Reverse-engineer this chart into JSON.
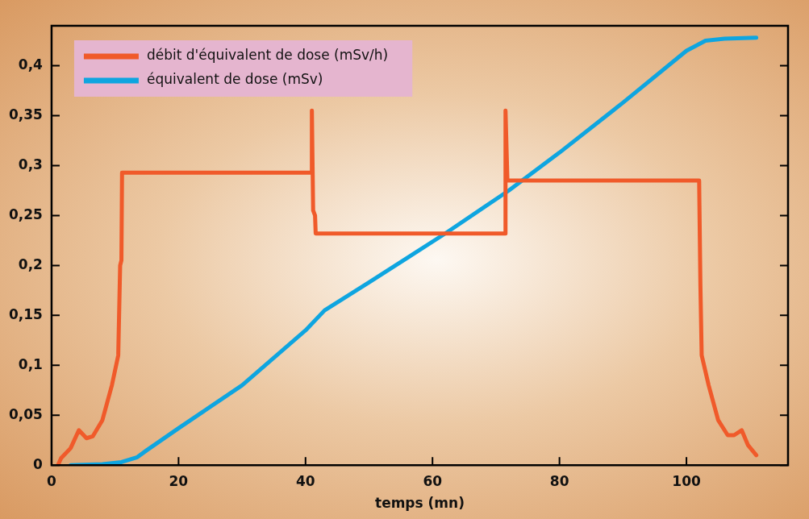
{
  "chart_data": {
    "type": "line",
    "xlabel": "temps (mn)",
    "xlim": [
      0,
      116
    ],
    "xticks": [
      0,
      20,
      40,
      60,
      80,
      100
    ],
    "ylim": [
      0,
      0.44
    ],
    "yticks": [
      {
        "value": 0,
        "label": "0"
      },
      {
        "value": 0.05,
        "label": "0,05"
      },
      {
        "value": 0.1,
        "label": "0,1"
      },
      {
        "value": 0.15,
        "label": "0,15"
      },
      {
        "value": 0.2,
        "label": "0,2"
      },
      {
        "value": 0.25,
        "label": "0,25"
      },
      {
        "value": 0.3,
        "label": "0,3"
      },
      {
        "value": 0.35,
        "label": "0,35"
      },
      {
        "value": 0.4,
        "label": "0,4"
      }
    ],
    "legend": "top left",
    "marker": "none",
    "line_style": "solid",
    "series": [
      {
        "name": "débit d'équivalent de dose (mSv/h)",
        "color": "#f05a2a",
        "x": [
          1,
          1.5,
          3,
          4.3,
          5.5,
          6.5,
          8,
          9.5,
          10.5,
          10.8,
          11,
          11.1,
          41,
          41,
          41.2,
          41.5,
          41.6,
          71.5,
          71.5,
          71.8,
          102,
          102.2,
          102.4,
          103.5,
          105,
          106.5,
          107.5,
          108.7,
          109.7,
          111
        ],
        "values": [
          0,
          0.007,
          0.017,
          0.035,
          0.027,
          0.029,
          0.045,
          0.08,
          0.11,
          0.2,
          0.205,
          0.293,
          0.293,
          0.355,
          0.255,
          0.25,
          0.232,
          0.232,
          0.355,
          0.285,
          0.285,
          0.18,
          0.11,
          0.08,
          0.045,
          0.03,
          0.03,
          0.035,
          0.02,
          0.01
        ]
      },
      {
        "name": "équivalent de dose (mSv)",
        "color": "#0ea5e0",
        "x": [
          3,
          8,
          11,
          13.5,
          15,
          20,
          30,
          40,
          43,
          50,
          62,
          72,
          80,
          90,
          100,
          103,
          106,
          111
        ],
        "values": [
          0,
          0.001,
          0.003,
          0.008,
          0.015,
          0.037,
          0.08,
          0.135,
          0.155,
          0.183,
          0.232,
          0.275,
          0.313,
          0.363,
          0.415,
          0.425,
          0.427,
          0.428
        ]
      }
    ]
  }
}
